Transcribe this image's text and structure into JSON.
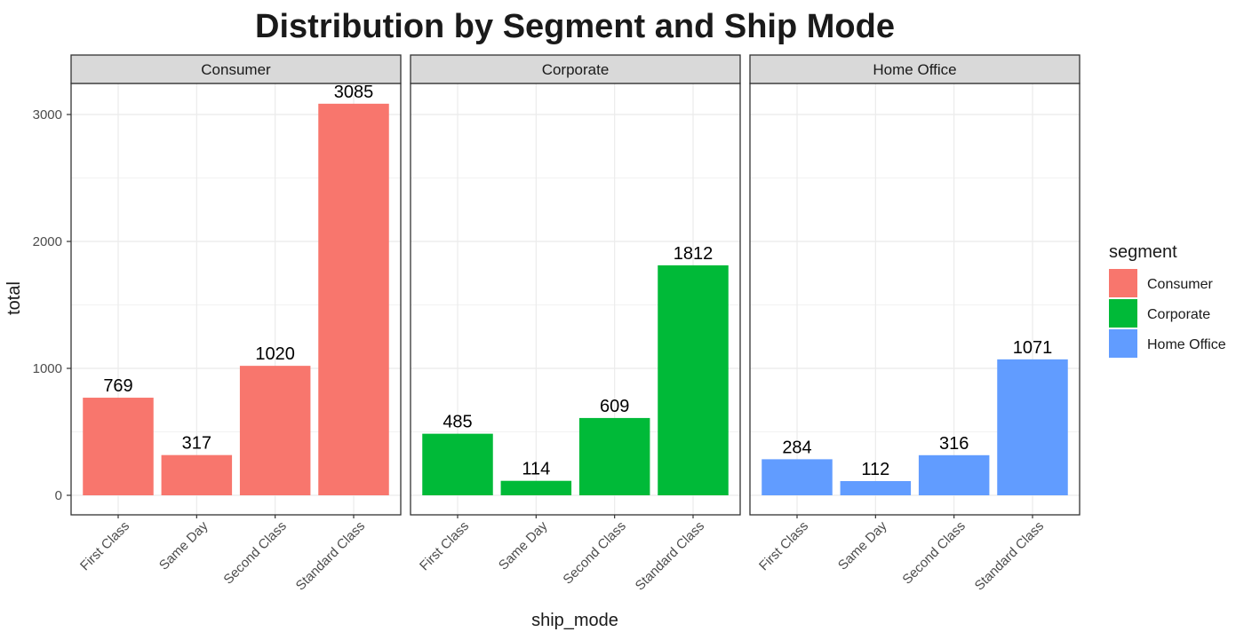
{
  "chart_data": {
    "type": "bar",
    "title": "Distribution by Segment and Ship Mode",
    "xlabel": "ship_mode",
    "ylabel": "total",
    "ylim": [
      0,
      3250
    ],
    "yticks": [
      0,
      1000,
      2000,
      3000
    ],
    "categories": [
      "First Class",
      "Same Day",
      "Second Class",
      "Standard Class"
    ],
    "facets": [
      {
        "name": "Consumer",
        "color": "#F8766D",
        "values": [
          769,
          317,
          1020,
          3085
        ]
      },
      {
        "name": "Corporate",
        "color": "#00BA38",
        "values": [
          485,
          114,
          609,
          1812
        ]
      },
      {
        "name": "Home Office",
        "color": "#619CFF",
        "values": [
          284,
          112,
          316,
          1071
        ]
      }
    ],
    "legend": {
      "title": "segment",
      "position": "right",
      "entries": [
        {
          "label": "Consumer",
          "color": "#F8766D"
        },
        {
          "label": "Corporate",
          "color": "#00BA38"
        },
        {
          "label": "Home Office",
          "color": "#619CFF"
        }
      ]
    },
    "grid": true,
    "theme": "bw"
  }
}
